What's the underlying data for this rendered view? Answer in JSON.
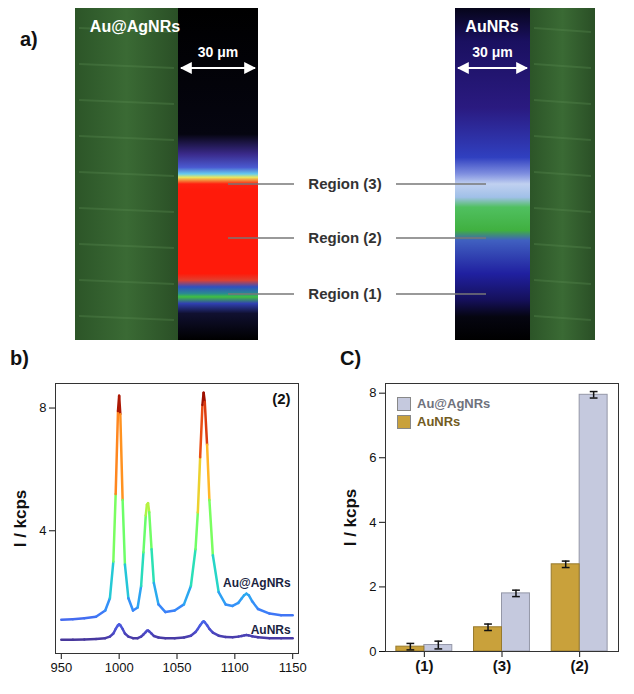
{
  "chart_data": [
    {
      "type": "image",
      "panel_label": "a)",
      "images": [
        {
          "title": "Au@AgNRs",
          "scale_bar": "30 μm"
        },
        {
          "title": "AuNRs",
          "scale_bar": "30 μm"
        }
      ],
      "regions": [
        "Region (3)",
        "Region (2)",
        "Region (1)"
      ]
    },
    {
      "type": "line",
      "panel_label": "b)",
      "ylabel": "I / kcps",
      "annotation": "(2)",
      "x": [
        950,
        960,
        970,
        980,
        988,
        992,
        995,
        997,
        999,
        1000,
        1001,
        1003,
        1005,
        1008,
        1012,
        1016,
        1019,
        1021,
        1023,
        1024,
        1025,
        1026,
        1028,
        1030,
        1034,
        1040,
        1048,
        1056,
        1062,
        1066,
        1068,
        1070,
        1072,
        1073,
        1074,
        1076,
        1078,
        1081,
        1086,
        1092,
        1098,
        1103,
        1106,
        1108,
        1110,
        1112,
        1115,
        1120,
        1130,
        1140,
        1150
      ],
      "series": [
        {
          "name": "Au@AgNRs",
          "values": [
            1.1,
            1.12,
            1.15,
            1.2,
            1.4,
            1.8,
            3.0,
            5.2,
            7.9,
            8.4,
            7.8,
            5.0,
            2.9,
            1.8,
            1.4,
            1.5,
            2.2,
            3.3,
            4.5,
            4.85,
            4.9,
            4.6,
            3.4,
            2.3,
            1.6,
            1.35,
            1.4,
            1.6,
            2.2,
            3.4,
            4.6,
            6.4,
            8.1,
            8.5,
            8.2,
            6.8,
            5.0,
            3.2,
            2.0,
            1.6,
            1.55,
            1.65,
            1.8,
            1.9,
            1.95,
            1.9,
            1.7,
            1.45,
            1.3,
            1.25,
            1.25
          ]
        },
        {
          "name": "AuNRs",
          "values": [
            0.45,
            0.45,
            0.46,
            0.47,
            0.5,
            0.55,
            0.65,
            0.8,
            0.92,
            0.95,
            0.92,
            0.8,
            0.65,
            0.55,
            0.5,
            0.5,
            0.55,
            0.62,
            0.7,
            0.74,
            0.75,
            0.72,
            0.65,
            0.57,
            0.52,
            0.5,
            0.5,
            0.52,
            0.58,
            0.7,
            0.8,
            0.92,
            1.02,
            1.05,
            1.02,
            0.92,
            0.8,
            0.68,
            0.58,
            0.54,
            0.53,
            0.55,
            0.57,
            0.59,
            0.6,
            0.59,
            0.56,
            0.53,
            0.5,
            0.5,
            0.5
          ]
        }
      ],
      "xlim": [
        945,
        1155
      ],
      "xticks": [
        950,
        1000,
        1050,
        1100,
        1150
      ],
      "ylim": [
        0,
        8.8
      ],
      "yticks": [
        4,
        8
      ]
    },
    {
      "type": "bar",
      "panel_label": "C)",
      "ylabel": "I / kcps",
      "categories": [
        "(1)",
        "(3)",
        "(2)"
      ],
      "series": [
        {
          "name": "Au@AgNRs",
          "color": "#c5c9de",
          "values": [
            0.2,
            1.8,
            7.95
          ],
          "errors": [
            0.12,
            0.1,
            0.1
          ]
        },
        {
          "name": "AuNRs",
          "color": "#c9a13b",
          "values": [
            0.15,
            0.75,
            2.7
          ],
          "errors": [
            0.1,
            0.1,
            0.1
          ]
        }
      ],
      "ylim": [
        0,
        8.3
      ],
      "yticks": [
        0,
        2,
        4,
        6,
        8
      ],
      "legend": "top-left"
    }
  ]
}
